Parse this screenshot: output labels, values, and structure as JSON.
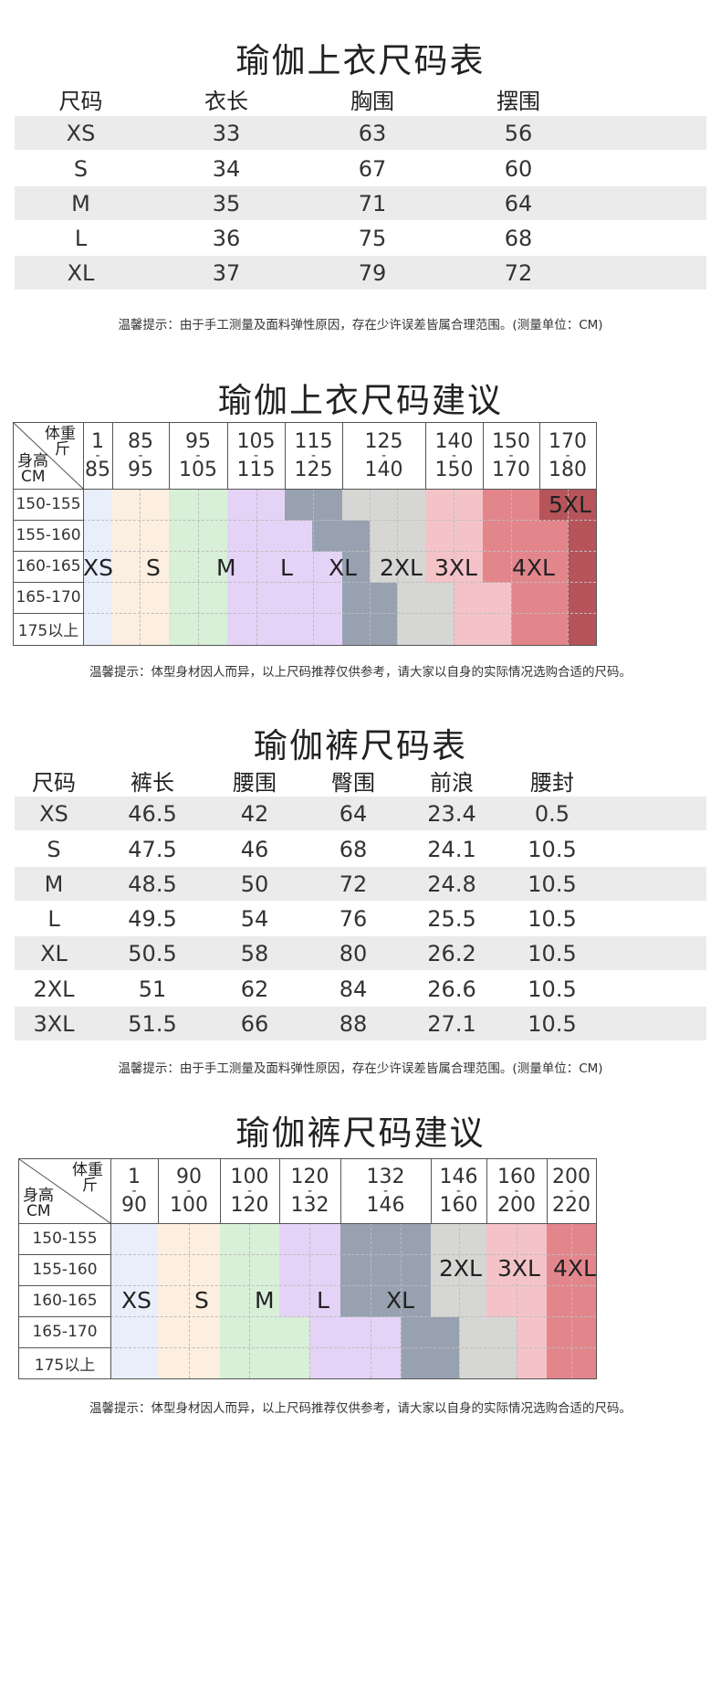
{
  "section1": {
    "title": "瑜伽上衣尺码表",
    "headers": [
      "尺码",
      "衣长",
      "胸围",
      "摆围"
    ],
    "rows": [
      [
        "XS",
        "33",
        "63",
        "56"
      ],
      [
        "S",
        "34",
        "67",
        "60"
      ],
      [
        "M",
        "35",
        "71",
        "64"
      ],
      [
        "L",
        "36",
        "75",
        "68"
      ],
      [
        "XL",
        "37",
        "79",
        "72"
      ]
    ],
    "note": "温馨提示：由于手工测量及面料弹性原因，存在少许误差皆属合理范围。(测量单位：CM)"
  },
  "section2": {
    "title": "瑜伽上衣尺码建议",
    "corner_weight": [
      "体重",
      "斤"
    ],
    "corner_height": [
      "身高",
      "CM"
    ],
    "weights": [
      [
        "1",
        "85"
      ],
      [
        "85",
        "95"
      ],
      [
        "95",
        "105"
      ],
      [
        "105",
        "115"
      ],
      [
        "115",
        "125"
      ],
      [
        "125",
        "140"
      ],
      [
        "140",
        "150"
      ],
      [
        "150",
        "170"
      ],
      [
        "170",
        "180"
      ]
    ],
    "heights": [
      "150-155",
      "155-160",
      "160-165",
      "165-170",
      "175以上"
    ],
    "sizes": [
      "XS",
      "S",
      "M",
      "L",
      "XL",
      "2XL",
      "3XL",
      "4XL",
      "5XL"
    ],
    "colors": {
      "xs": "#e8effb",
      "s": "#fcefe0",
      "m": "#d8efd8",
      "l": "#e5d3f7",
      "xl": "#98a1b0",
      "xxl": "#d6d6d4",
      "xxxl": "#f4c3c8",
      "xxxxl": "#e3868c",
      "xxxxxl": "#b6545a"
    },
    "note": "温馨提示：体型身材因人而异，以上尺码推荐仅供参考，请大家以自身的实际情况选购合适的尺码。"
  },
  "section3": {
    "title": "瑜伽裤尺码表",
    "headers": [
      "尺码",
      "裤长",
      "腰围",
      "臀围",
      "前浪",
      "腰封"
    ],
    "rows": [
      [
        "XS",
        "46.5",
        "42",
        "64",
        "23.4",
        "0.5"
      ],
      [
        "S",
        "47.5",
        "46",
        "68",
        "24.1",
        "10.5"
      ],
      [
        "M",
        "48.5",
        "50",
        "72",
        "24.8",
        "10.5"
      ],
      [
        "L",
        "49.5",
        "54",
        "76",
        "25.5",
        "10.5"
      ],
      [
        "XL",
        "50.5",
        "58",
        "80",
        "26.2",
        "10.5"
      ],
      [
        "2XL",
        "51",
        "62",
        "84",
        "26.6",
        "10.5"
      ],
      [
        "3XL",
        "51.5",
        "66",
        "88",
        "27.1",
        "10.5"
      ]
    ],
    "note": "温馨提示：由于手工测量及面料弹性原因，存在少许误差皆属合理范围。(测量单位：CM)"
  },
  "section4": {
    "title": "瑜伽裤尺码建议",
    "corner_weight": [
      "体重",
      "斤"
    ],
    "corner_height": [
      "身高",
      "CM"
    ],
    "weights": [
      [
        "1",
        "90"
      ],
      [
        "90",
        "100"
      ],
      [
        "100",
        "120"
      ],
      [
        "120",
        "132"
      ],
      [
        "132",
        "146"
      ],
      [
        "146",
        "160"
      ],
      [
        "160",
        "200"
      ],
      [
        "200",
        "220"
      ]
    ],
    "heights": [
      "150-155",
      "155-160",
      "160-165",
      "165-170",
      "175以上"
    ],
    "sizes": [
      "XS",
      "S",
      "M",
      "L",
      "XL",
      "2XL",
      "3XL",
      "4XL"
    ],
    "colors": {
      "xs": "#e8effb",
      "s": "#fcefe0",
      "m": "#d8efd8",
      "l": "#e5d3f7",
      "xl": "#98a1b0",
      "xxl": "#d6d6d4",
      "xxxl": "#f4c3c8",
      "xxxxl": "#e3868c"
    },
    "note": "温馨提示：体型身材因人而异，以上尺码推荐仅供参考，请大家以自身的实际情况选购合适的尺码。"
  }
}
